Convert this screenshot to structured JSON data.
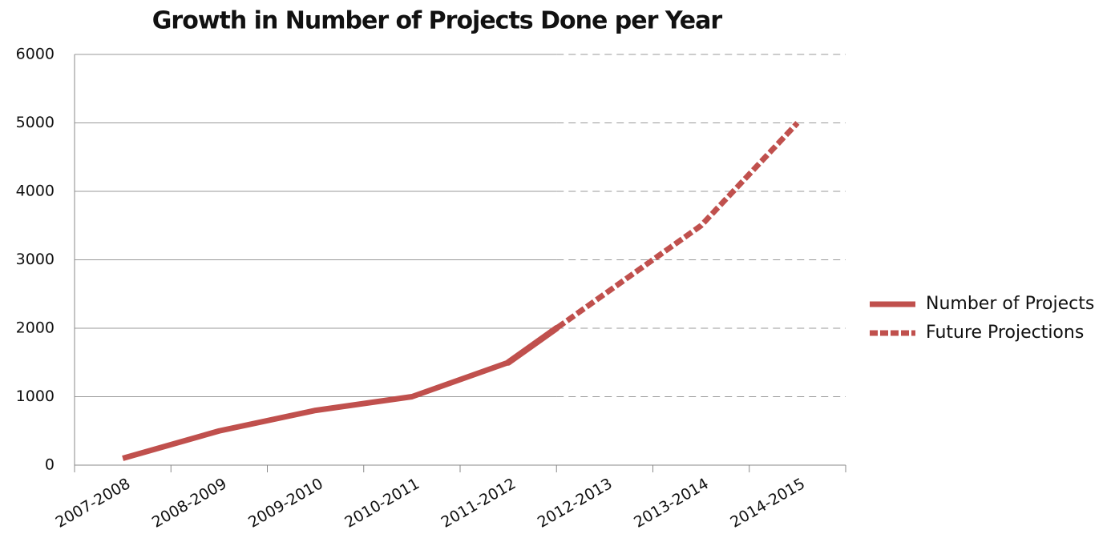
{
  "chart_data": {
    "type": "line",
    "title": "Growth in Number of Projects Done per Year",
    "categories": [
      "2007-2008",
      "2008-2009",
      "2009-2010",
      "2010-2011",
      "2011-2012",
      "2012-2013",
      "2013-2014",
      "2014-2015"
    ],
    "series": [
      {
        "name": "Number of Projects",
        "color": "#c0504d",
        "values": [
          100,
          500,
          800,
          1000,
          1500,
          null,
          null,
          null
        ]
      },
      {
        "name": "Future Projections",
        "color": "#c0504d",
        "values": [
          null,
          null,
          null,
          null,
          1500,
          2500,
          3500,
          5000
        ]
      }
    ],
    "ylim": [
      0,
      6000
    ],
    "yticks": [
      0,
      1000,
      2000,
      3000,
      4000,
      5000,
      6000
    ],
    "grid": true,
    "legend": "right"
  }
}
